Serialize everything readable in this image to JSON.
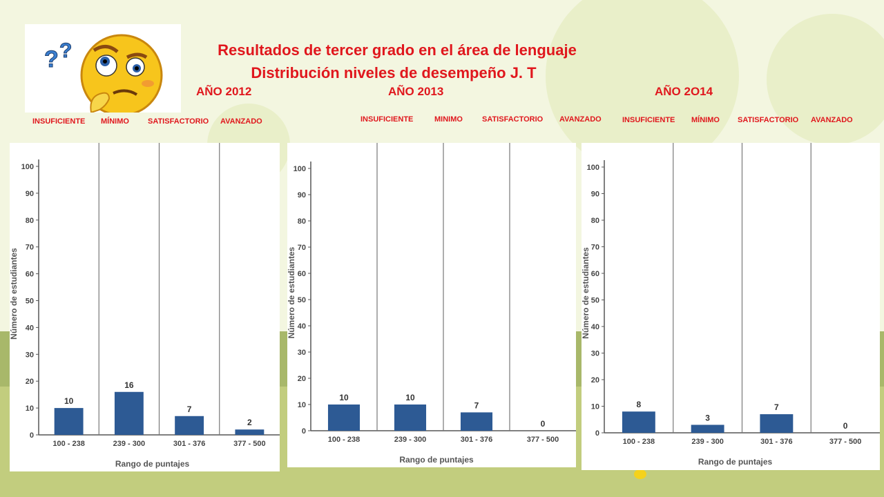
{
  "title_line1": "Resultados de tercer grado en el área de lenguaje",
  "title_line2": "Distribución  niveles de desempeño J. T",
  "years": [
    {
      "label": "AÑO   2012",
      "levels": [
        "INSUFICIENTE",
        "MÍNIMO",
        "SATISFACTORIO",
        "AVANZADO"
      ]
    },
    {
      "label": "AÑO   2013",
      "levels": [
        "INSUFICIENTE",
        "MINIMO",
        "SATISFACTORIO",
        "AVANZADO"
      ]
    },
    {
      "label": "AÑO  2O14",
      "levels": [
        "INSUFICIENTE",
        "MÍNIMO",
        "SATISFACTORIO",
        "AVANZADO"
      ]
    }
  ],
  "colors": {
    "title": "#e0171d",
    "bar": "#2d5a94",
    "axis": "#555555",
    "background": "#f1f4dd"
  },
  "emoji_icon": "confused-thinking-face-with-question-marks",
  "chart_data": [
    {
      "type": "bar",
      "year": "2012",
      "categories": [
        "100 - 238",
        "239 - 300",
        "301 - 376",
        "377 - 500"
      ],
      "values": [
        10,
        16,
        7,
        2
      ],
      "xlabel": "Rango de puntajes",
      "ylabel": "Número de estudiantes",
      "ylim": [
        0,
        100
      ],
      "yticks": [
        0,
        10,
        20,
        30,
        40,
        50,
        60,
        70,
        80,
        90,
        100
      ]
    },
    {
      "type": "bar",
      "year": "2013",
      "categories": [
        "100 - 238",
        "239 - 300",
        "301 - 376",
        "377 - 500"
      ],
      "values": [
        10,
        10,
        7,
        0
      ],
      "xlabel": "Rango de puntajes",
      "ylabel": "Número de estudiantes",
      "ylim": [
        0,
        100
      ],
      "yticks": [
        0,
        10,
        20,
        30,
        40,
        50,
        60,
        70,
        80,
        90,
        100
      ]
    },
    {
      "type": "bar",
      "year": "2014",
      "categories": [
        "100 - 238",
        "239 - 300",
        "301 - 376",
        "377 - 500"
      ],
      "values": [
        8,
        3,
        7,
        0
      ],
      "xlabel": "Rango de puntajes",
      "ylabel": "Número de estudiantes",
      "ylim": [
        0,
        100
      ],
      "yticks": [
        0,
        10,
        20,
        30,
        40,
        50,
        60,
        70,
        80,
        90,
        100
      ]
    }
  ]
}
